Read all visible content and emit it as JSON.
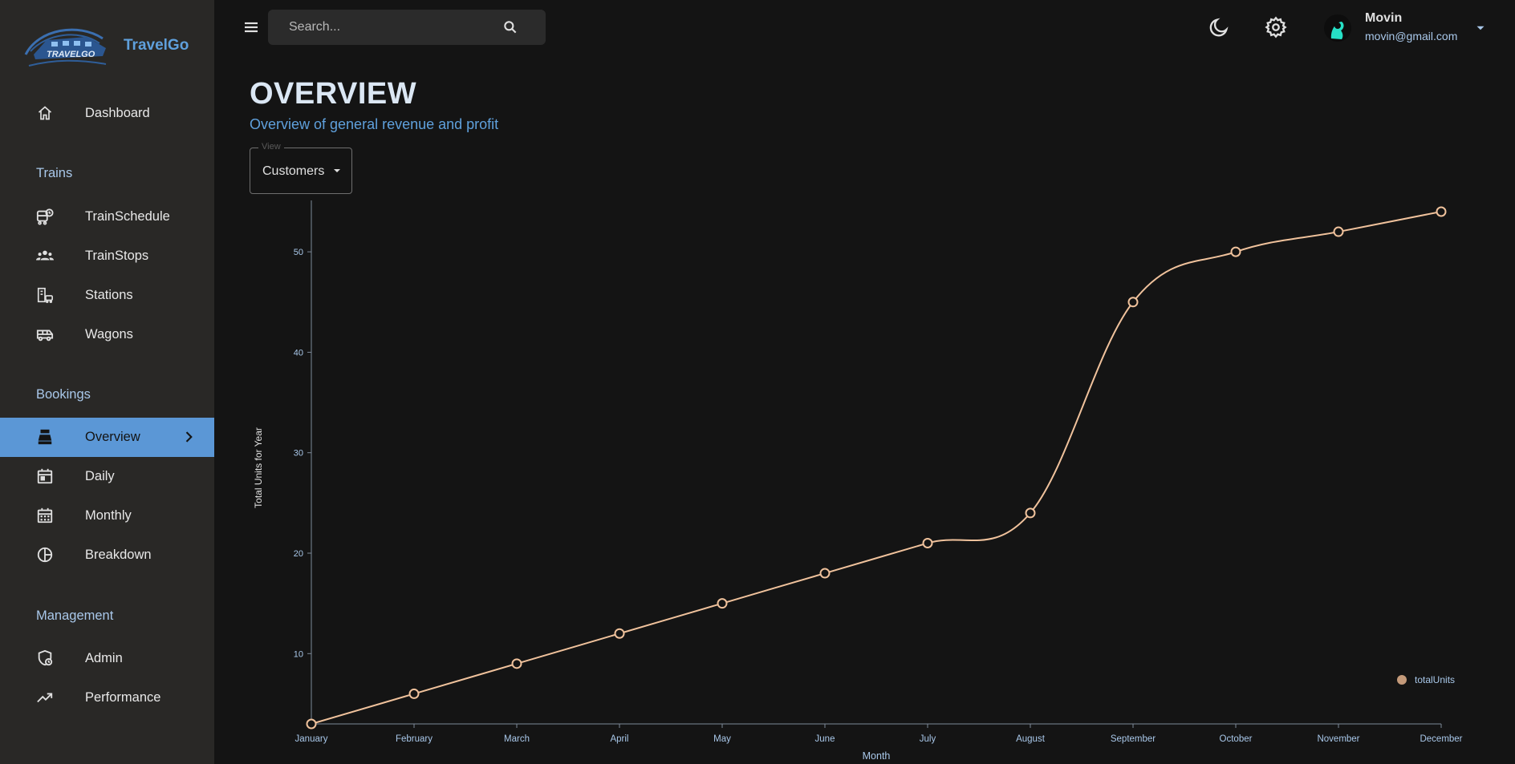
{
  "app": {
    "name": "TravelGo",
    "logo_text": "TRAVELGO"
  },
  "sidebar": {
    "dashboard": {
      "label": "Dashboard",
      "icon": "home-icon"
    },
    "sections": {
      "trains": "Trains",
      "bookings": "Bookings",
      "management": "Management"
    },
    "trains": [
      {
        "label": "TrainSchedule",
        "icon": "train-schedule-icon"
      },
      {
        "label": "TrainStops",
        "icon": "groups-icon"
      },
      {
        "label": "Stations",
        "icon": "station-icon"
      },
      {
        "label": "Wagons",
        "icon": "wagon-icon"
      }
    ],
    "bookings": [
      {
        "label": "Overview",
        "icon": "point-of-sale-icon",
        "active": true
      },
      {
        "label": "Daily",
        "icon": "calendar-today-icon"
      },
      {
        "label": "Monthly",
        "icon": "calendar-month-icon"
      },
      {
        "label": "Breakdown",
        "icon": "pie-chart-icon"
      }
    ],
    "management": [
      {
        "label": "Admin",
        "icon": "admin-shield-icon"
      },
      {
        "label": "Performance",
        "icon": "trending-up-icon"
      }
    ]
  },
  "topbar": {
    "search_placeholder": "Search...",
    "user": {
      "name": "Movin",
      "email": "movin@gmail.com"
    }
  },
  "header": {
    "title": "OVERVIEW",
    "subtitle": "Overview of general revenue and profit"
  },
  "view_select": {
    "legend": "View",
    "value": "Customers"
  },
  "colors": {
    "accent": "#5b97d6",
    "line": "#f0c29c",
    "legend_dot": "#c49a7a",
    "axis": "#a9c8ea"
  },
  "chart_data": {
    "type": "line",
    "categories": [
      "January",
      "February",
      "March",
      "April",
      "May",
      "June",
      "July",
      "August",
      "September",
      "October",
      "November",
      "December"
    ],
    "series": [
      {
        "name": "totalUnits",
        "values": [
          3,
          6,
          9,
          12,
          15,
          18,
          21,
          24,
          45,
          50,
          52,
          54
        ]
      }
    ],
    "xlabel": "Month",
    "ylabel": "Total Units for Year",
    "yticks": [
      10,
      20,
      30,
      40,
      50
    ],
    "ylim": [
      3,
      54
    ],
    "curve": "smooth",
    "legend_position": "bottom-right"
  }
}
